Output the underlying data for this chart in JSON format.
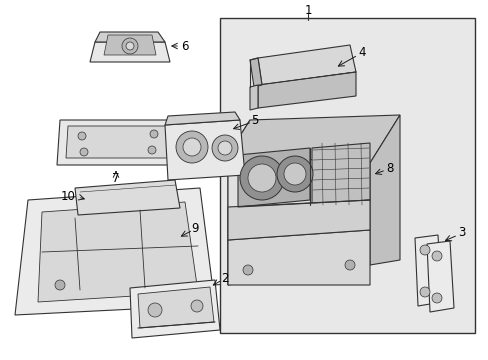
{
  "bg": "#ffffff",
  "lc": "#1a1a1a",
  "part_fill": "#f5f5f5",
  "part_edge": "#333333",
  "box_bg": "#e8e8e8",
  "gray_fill": "#d0d0d0",
  "dark_fill": "#b8b8b8",
  "lw": 0.8,
  "label_fs": 8.5
}
